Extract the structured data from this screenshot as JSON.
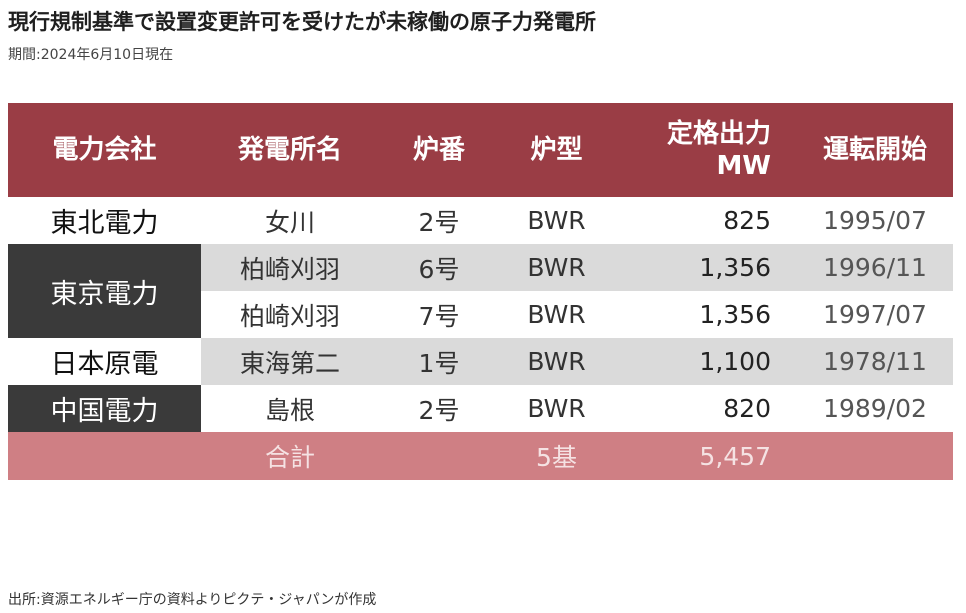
{
  "title": "現行規制基準で設置変更許可を受けたが未稼働の原子力発電所",
  "subtitle": "期間:2024年6月10日現在",
  "source": "出所:資源エネルギー庁の資料よりピクテ・ジャパンが作成",
  "colors": {
    "header_bg": "#9a3d45",
    "company_dark_bg": "#3a3a3a",
    "row_gray_bg": "#dadada",
    "total_bg": "#cf7f84"
  },
  "chart_data": {
    "type": "table",
    "columns": [
      "電力会社",
      "発電所名",
      "炉番",
      "炉型",
      "定格出力 MW",
      "運転開始"
    ],
    "header": {
      "company": "電力会社",
      "plant": "発電所名",
      "unit": "炉番",
      "reactor_type": "炉型",
      "capacity_line1": "定格出力",
      "capacity_line2": "MW",
      "start": "運転開始"
    },
    "groups": [
      {
        "company": "東北電力",
        "rows": [
          {
            "plant": "女川",
            "unit": "2号",
            "reactor_type": "BWR",
            "capacity_mw": "825",
            "start": "1995/07"
          }
        ]
      },
      {
        "company": "東京電力",
        "rows": [
          {
            "plant": "柏崎刈羽",
            "unit": "6号",
            "reactor_type": "BWR",
            "capacity_mw": "1,356",
            "start": "1996/11"
          },
          {
            "plant": "柏崎刈羽",
            "unit": "7号",
            "reactor_type": "BWR",
            "capacity_mw": "1,356",
            "start": "1997/07"
          }
        ]
      },
      {
        "company": "日本原電",
        "rows": [
          {
            "plant": "東海第二",
            "unit": "1号",
            "reactor_type": "BWR",
            "capacity_mw": "1,100",
            "start": "1978/11"
          }
        ]
      },
      {
        "company": "中国電力",
        "rows": [
          {
            "plant": "島根",
            "unit": "2号",
            "reactor_type": "BWR",
            "capacity_mw": "820",
            "start": "1989/02"
          }
        ]
      }
    ],
    "total": {
      "label": "合計",
      "count": "5基",
      "capacity_mw": "5,457"
    }
  }
}
